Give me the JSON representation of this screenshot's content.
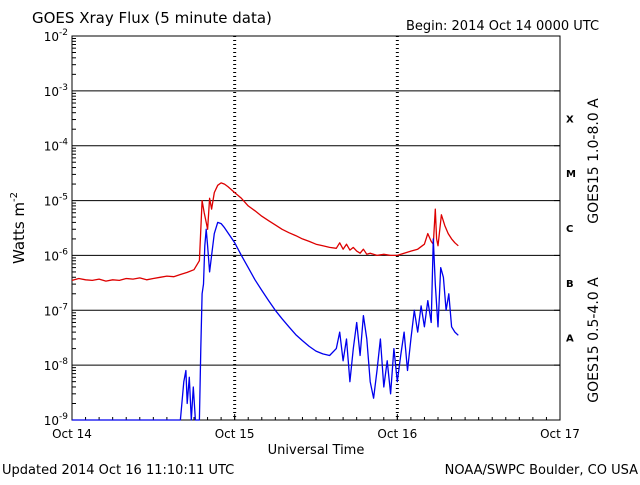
{
  "header": {
    "title": "GOES Xray Flux (5 minute data)",
    "begin": "Begin:  2014 Oct 14 0000 UTC"
  },
  "footer": {
    "updated": "Updated 2014 Oct 16 11:10:11 UTC",
    "credit": "NOAA/SWPC Boulder, CO USA"
  },
  "colors": {
    "long_channel": "#dd0000",
    "short_channel": "#0000ee",
    "axis": "#000000"
  },
  "chart_data": {
    "type": "line",
    "xlabel": "Universal Time",
    "ylabel": "Watts m-2",
    "y_scale": "log",
    "ylim": [
      1e-09,
      0.01
    ],
    "xlim_hours": [
      0,
      72
    ],
    "x_ticks": [
      {
        "label": "Oct 14",
        "hour": 0
      },
      {
        "label": "Oct 15",
        "hour": 24
      },
      {
        "label": "Oct 16",
        "hour": 48
      },
      {
        "label": "Oct 17",
        "hour": 72
      }
    ],
    "y_ticks": [
      {
        "exp": -9,
        "label": "10",
        "sup": "-9"
      },
      {
        "exp": -8,
        "label": "10",
        "sup": "-8"
      },
      {
        "exp": -7,
        "label": "10",
        "sup": "-7"
      },
      {
        "exp": -6,
        "label": "10",
        "sup": "-6"
      },
      {
        "exp": -5,
        "label": "10",
        "sup": "-5"
      },
      {
        "exp": -4,
        "label": "10",
        "sup": "-4"
      },
      {
        "exp": -3,
        "label": "10",
        "sup": "-3"
      },
      {
        "exp": -2,
        "label": "10",
        "sup": "-2"
      }
    ],
    "flare_classes": [
      {
        "label": "A",
        "exp": -7.5
      },
      {
        "label": "B",
        "exp": -6.5
      },
      {
        "label": "C",
        "exp": -5.5
      },
      {
        "label": "M",
        "exp": -4.5
      },
      {
        "label": "X",
        "exp": -3.5
      }
    ],
    "grid": "horizontal lines at each decade; dashed vertical lines at day boundaries",
    "legend_placement": "right side, rotated",
    "series": [
      {
        "name": "GOES15 1.0-8.0 A",
        "color": "#dd0000",
        "x_hours": [
          0,
          1,
          2,
          3,
          4,
          5,
          6,
          7,
          8,
          9,
          10,
          11,
          12,
          13,
          14,
          15,
          16,
          17,
          18,
          18.8,
          19.2,
          19.5,
          19.8,
          20,
          20.3,
          20.6,
          21,
          21.5,
          22,
          22.5,
          23,
          24,
          25,
          26,
          27,
          28,
          29,
          30,
          31,
          32,
          33,
          34,
          35,
          36,
          37,
          38,
          39,
          39.5,
          40,
          40.5,
          41,
          41.5,
          42,
          42.5,
          43,
          43.5,
          44,
          45,
          46,
          47,
          48,
          49,
          50,
          51,
          52,
          52.5,
          53,
          53.3,
          53.6,
          53.8,
          54,
          54.5,
          55,
          55.5,
          56,
          56.5,
          57
        ],
        "values": [
          3.5e-07,
          3.8e-07,
          3.6e-07,
          3.5e-07,
          3.7e-07,
          3.4e-07,
          3.6e-07,
          3.5e-07,
          3.8e-07,
          3.7e-07,
          3.9e-07,
          3.6e-07,
          3.8e-07,
          4e-07,
          4.2e-07,
          4.1e-07,
          4.5e-07,
          4.9e-07,
          5.5e-07,
          8e-07,
          1e-05,
          6e-06,
          4e-06,
          3e-06,
          1.1e-05,
          7e-06,
          1.4e-05,
          1.9e-05,
          2.1e-05,
          2e-05,
          1.8e-05,
          1.4e-05,
          1.1e-05,
          8e-06,
          6.5e-06,
          5.2e-06,
          4.3e-06,
          3.6e-06,
          3e-06,
          2.6e-06,
          2.3e-06,
          2e-06,
          1.8e-06,
          1.6e-06,
          1.5e-06,
          1.4e-06,
          1.35e-06,
          1.7e-06,
          1.3e-06,
          1.6e-06,
          1.25e-06,
          1.4e-06,
          1.2e-06,
          1.1e-06,
          1.3e-06,
          1.05e-06,
          1.1e-06,
          1e-06,
          1.05e-06,
          1e-06,
          1e-06,
          1.1e-06,
          1.2e-06,
          1.3e-06,
          1.6e-06,
          2.5e-06,
          1.8e-06,
          1.6e-06,
          7e-06,
          2e-06,
          1.5e-06,
          5.5e-06,
          3.5e-06,
          2.5e-06,
          2e-06,
          1.7e-06,
          1.5e-06
        ]
      },
      {
        "name": "GOES15 0.5-4.0 A",
        "color": "#0000ee",
        "x_hours": [
          0,
          5,
          10,
          15,
          16,
          16.5,
          16.8,
          17,
          17.3,
          17.6,
          17.9,
          18.2,
          18.5,
          18.8,
          19,
          19.2,
          19.4,
          19.6,
          19.8,
          20,
          20.3,
          20.6,
          21,
          21.5,
          22,
          22.5,
          23,
          24,
          25,
          26,
          27,
          28,
          29,
          30,
          31,
          32,
          33,
          34,
          35,
          36,
          37,
          38,
          39,
          39.5,
          40,
          40.5,
          41,
          41.5,
          42,
          42.5,
          43,
          43.5,
          44,
          44.5,
          45,
          45.5,
          46,
          46.5,
          47,
          47.5,
          48,
          48.5,
          49,
          49.5,
          50,
          50.5,
          51,
          51.5,
          52,
          52.5,
          53,
          53.3,
          53.6,
          54,
          54.4,
          54.8,
          55.2,
          55.6,
          56,
          56.5,
          57
        ],
        "values": [
          1e-09,
          1e-09,
          1e-09,
          1e-09,
          1e-09,
          5e-09,
          8e-09,
          2e-09,
          6e-09,
          1e-09,
          4e-09,
          1e-09,
          1e-09,
          1e-09,
          2e-08,
          2e-07,
          3e-07,
          1.5e-06,
          3e-06,
          1.5e-06,
          5e-07,
          1e-06,
          2.5e-06,
          4e-06,
          3.8e-06,
          3.2e-06,
          2.6e-06,
          1.7e-06,
          1e-06,
          6e-07,
          3.6e-07,
          2.3e-07,
          1.5e-07,
          1e-07,
          7e-08,
          5e-08,
          3.6e-08,
          2.8e-08,
          2.2e-08,
          1.8e-08,
          1.6e-08,
          1.5e-08,
          2e-08,
          4e-08,
          1.2e-08,
          3e-08,
          5e-09,
          2e-08,
          6e-08,
          1.5e-08,
          8e-08,
          3e-08,
          5e-09,
          2.5e-09,
          8e-09,
          3e-08,
          4e-09,
          1.2e-08,
          3e-09,
          2e-08,
          5e-09,
          1.5e-08,
          4e-08,
          8e-09,
          3e-08,
          1e-07,
          4e-08,
          1.2e-07,
          5e-08,
          1.5e-07,
          6e-08,
          2e-06,
          3e-07,
          5e-08,
          6e-07,
          4e-07,
          1e-07,
          2e-07,
          5e-08,
          4e-08,
          3.5e-08
        ]
      }
    ]
  }
}
